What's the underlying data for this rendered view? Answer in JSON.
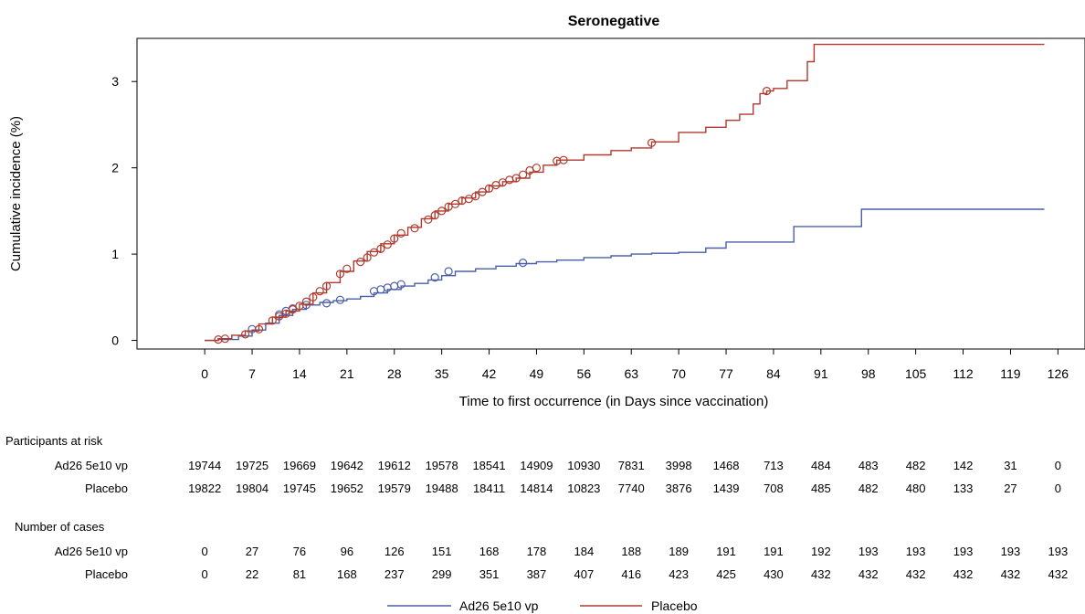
{
  "chart_data": {
    "type": "line",
    "title": "Seronegative",
    "xlabel": "Time to first occurrence (in Days since vaccination)",
    "ylabel": "Cumulative incidence (%)",
    "xlim": [
      -10,
      130
    ],
    "ylim": [
      -0.1,
      3.5
    ],
    "xticks": [
      0,
      7,
      14,
      21,
      28,
      35,
      42,
      49,
      56,
      63,
      70,
      77,
      84,
      91,
      98,
      105,
      112,
      119,
      126
    ],
    "yticks": [
      0,
      1,
      2,
      3
    ],
    "grid": false,
    "legend": "bottom",
    "colors": {
      "Ad26 5e10 vp": "#4a5fa8",
      "Placebo": "#b03a2e"
    },
    "series": [
      {
        "name": "Ad26 5e10 vp",
        "x": [
          0,
          2,
          5,
          7,
          9,
          11,
          13,
          15,
          17,
          19,
          21,
          23,
          25,
          27,
          29,
          31,
          33,
          35,
          37,
          40,
          43,
          46,
          49,
          52,
          56,
          60,
          63,
          66,
          70,
          74,
          77,
          80,
          84,
          87,
          90,
          95,
          97,
          110,
          124
        ],
        "y": [
          0,
          0.01,
          0.05,
          0.12,
          0.2,
          0.29,
          0.36,
          0.41,
          0.44,
          0.46,
          0.48,
          0.51,
          0.55,
          0.59,
          0.63,
          0.66,
          0.7,
          0.75,
          0.8,
          0.83,
          0.86,
          0.89,
          0.91,
          0.93,
          0.96,
          0.98,
          1.0,
          1.01,
          1.02,
          1.07,
          1.14,
          1.14,
          1.14,
          1.32,
          1.32,
          1.32,
          1.52,
          1.52,
          1.52
        ],
        "censored_x": [
          7,
          11,
          12,
          13,
          15,
          18,
          20,
          25,
          26,
          27,
          28,
          29,
          34,
          36,
          47
        ],
        "censored_y": [
          0.13,
          0.3,
          0.34,
          0.37,
          0.41,
          0.43,
          0.47,
          0.57,
          0.59,
          0.61,
          0.63,
          0.65,
          0.73,
          0.8,
          0.9
        ]
      },
      {
        "name": "Placebo",
        "x": [
          0,
          2,
          4,
          6,
          8,
          10,
          12,
          14,
          16,
          18,
          20,
          22,
          24,
          26,
          28,
          30,
          32,
          34,
          36,
          38,
          40,
          42,
          44,
          46,
          48,
          50,
          52,
          56,
          60,
          63,
          66,
          70,
          74,
          77,
          79,
          81,
          82,
          83,
          84,
          86,
          88,
          89,
          90,
          124
        ],
        "y": [
          0,
          0.02,
          0.06,
          0.11,
          0.19,
          0.27,
          0.34,
          0.42,
          0.55,
          0.67,
          0.8,
          0.92,
          1.03,
          1.12,
          1.22,
          1.31,
          1.41,
          1.5,
          1.58,
          1.65,
          1.72,
          1.79,
          1.84,
          1.88,
          1.95,
          2.03,
          2.09,
          2.15,
          2.2,
          2.23,
          2.3,
          2.41,
          2.47,
          2.55,
          2.62,
          2.74,
          2.86,
          2.89,
          2.92,
          3.01,
          3.01,
          3.23,
          3.43,
          3.43
        ],
        "censored_x": [
          2,
          3,
          6,
          8,
          10,
          11,
          12,
          13,
          14,
          15,
          16,
          17,
          18,
          20,
          21,
          23,
          24,
          25,
          26,
          27,
          28,
          29,
          31,
          33,
          34,
          35,
          36,
          37,
          38,
          39,
          40,
          41,
          42,
          43,
          44,
          45,
          46,
          47,
          48,
          49,
          52,
          53,
          66,
          83
        ],
        "censored_y": [
          0.01,
          0.02,
          0.07,
          0.13,
          0.23,
          0.28,
          0.31,
          0.36,
          0.4,
          0.45,
          0.5,
          0.57,
          0.63,
          0.77,
          0.83,
          0.91,
          0.96,
          1.02,
          1.06,
          1.11,
          1.18,
          1.24,
          1.3,
          1.4,
          1.45,
          1.5,
          1.55,
          1.58,
          1.62,
          1.64,
          1.67,
          1.72,
          1.76,
          1.8,
          1.83,
          1.86,
          1.88,
          1.92,
          1.97,
          2.0,
          2.08,
          2.09,
          2.29,
          2.89
        ]
      }
    ]
  },
  "risk_table": {
    "title": "Participants at risk",
    "rows": [
      {
        "label": "Ad26 5e10 vp",
        "values": [
          "19744",
          "19725",
          "19669",
          "19642",
          "19612",
          "19578",
          "18541",
          "14909",
          "10930",
          "7831",
          "3998",
          "1468",
          "713",
          "484",
          "483",
          "482",
          "142",
          "31",
          "0"
        ]
      },
      {
        "label": "Placebo",
        "values": [
          "19822",
          "19804",
          "19745",
          "19652",
          "19579",
          "19488",
          "18411",
          "14814",
          "10823",
          "7740",
          "3876",
          "1439",
          "708",
          "485",
          "482",
          "480",
          "133",
          "27",
          "0"
        ]
      }
    ]
  },
  "cases_table": {
    "title": "Number of cases",
    "rows": [
      {
        "label": "Ad26 5e10 vp",
        "values": [
          "0",
          "27",
          "76",
          "96",
          "126",
          "151",
          "168",
          "178",
          "184",
          "188",
          "189",
          "191",
          "191",
          "192",
          "193",
          "193",
          "193",
          "193",
          "193"
        ]
      },
      {
        "label": "Placebo",
        "values": [
          "0",
          "22",
          "81",
          "168",
          "237",
          "299",
          "351",
          "387",
          "407",
          "416",
          "423",
          "425",
          "430",
          "432",
          "432",
          "432",
          "432",
          "432",
          "432"
        ]
      }
    ]
  }
}
